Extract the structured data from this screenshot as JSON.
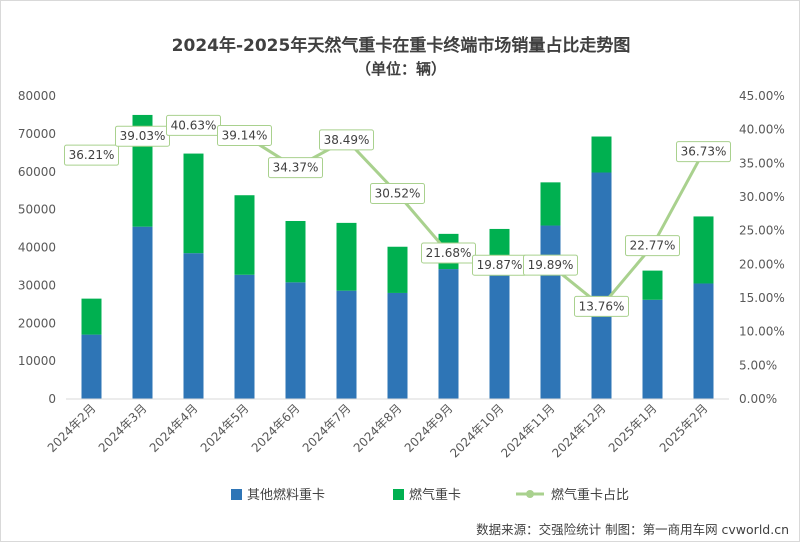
{
  "chart_data": {
    "type": "bar",
    "stacked": true,
    "title": "2024年-2025年天然气重卡在重卡终端市场销量占比走势图",
    "subtitle": "（单位：辆）",
    "categories": [
      "2024年2月",
      "2024年3月",
      "2024年4月",
      "2024年5月",
      "2024年6月",
      "2024年7月",
      "2024年8月",
      "2024年9月",
      "2024年10月",
      "2024年11月",
      "2024年12月",
      "2025年1月",
      "2025年2月"
    ],
    "series": [
      {
        "name": "其他燃料重卡",
        "type": "bar",
        "axis": "left",
        "color": "#2e75b6",
        "values": [
          17000,
          45500,
          38500,
          32800,
          30800,
          28600,
          28000,
          34300,
          36000,
          45800,
          59800,
          26200,
          30500
        ]
      },
      {
        "name": "燃气重卡",
        "type": "bar",
        "axis": "left",
        "color": "#00b050",
        "values": [
          9500,
          29500,
          26300,
          21000,
          16200,
          17900,
          12200,
          9300,
          8900,
          11400,
          9500,
          7700,
          17700
        ]
      },
      {
        "name": "燃气重卡占比",
        "type": "line",
        "axis": "right",
        "color": "#a9d18e",
        "values": [
          36.21,
          39.03,
          40.63,
          39.14,
          34.37,
          38.49,
          30.52,
          21.68,
          19.87,
          19.89,
          13.76,
          22.77,
          36.73
        ],
        "labels": [
          "36.21%",
          "39.03%",
          "40.63%",
          "39.14%",
          "34.37%",
          "38.49%",
          "30.52%",
          "21.68%",
          "19.87%",
          "19.89%",
          "13.76%",
          "22.77%",
          "36.73%"
        ]
      }
    ],
    "y_left": {
      "min": 0,
      "max": 80000,
      "ticks": [
        "0",
        "10000",
        "20000",
        "30000",
        "40000",
        "50000",
        "60000",
        "70000",
        "80000"
      ]
    },
    "y_right": {
      "min": 0,
      "max": 45,
      "ticks": [
        "0.00%",
        "5.00%",
        "10.00%",
        "15.00%",
        "20.00%",
        "25.00%",
        "30.00%",
        "35.00%",
        "40.00%",
        "45.00%"
      ]
    },
    "legend_position": "bottom",
    "grid": false
  },
  "source_note": "数据来源：交强险统计  制图：第一商用车网 cvworld.cn"
}
